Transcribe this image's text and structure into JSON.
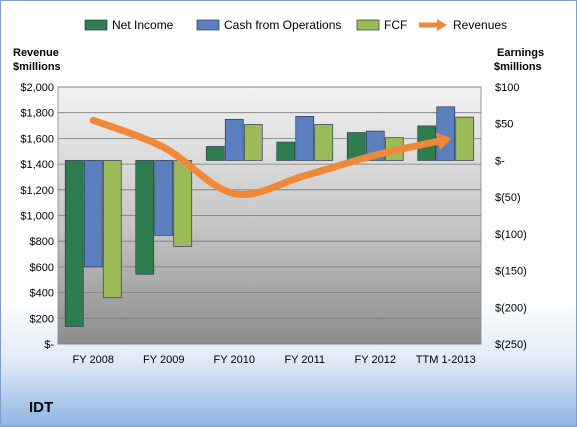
{
  "chart_data": {
    "type": "bar",
    "company": "IDT",
    "categories": [
      "FY 2008",
      "FY 2009",
      "FY 2010",
      "FY 2011",
      "FY 2012",
      "TTM 1-2013"
    ],
    "left_axis": {
      "title_line1": "Revenue",
      "title_line2": "$millions",
      "ylim": [
        0,
        2000
      ],
      "ticks": [
        0,
        200,
        400,
        600,
        800,
        1000,
        1200,
        1400,
        1600,
        1800,
        2000
      ],
      "tick_labels": [
        "$-",
        "$200",
        "$400",
        "$600",
        "$800",
        "$1,000",
        "$1,200",
        "$1,400",
        "$1,600",
        "$1,800",
        "$2,000"
      ]
    },
    "right_axis": {
      "title_line1": "Earnings",
      "title_line2": "$millions",
      "ylim": [
        -250,
        100
      ],
      "ticks": [
        -250,
        -200,
        -150,
        -100,
        -50,
        0,
        50,
        100
      ],
      "tick_labels": [
        "$(250)",
        "$(200)",
        "$(150)",
        "$(100)",
        "$(50)",
        "$-",
        "$50",
        "$100"
      ]
    },
    "series": [
      {
        "name": "Net Income",
        "axis": "right",
        "color": "#2e7d4f",
        "values": [
          -226,
          -155,
          19,
          25,
          38,
          47
        ]
      },
      {
        "name": "Cash from Operations",
        "axis": "right",
        "color": "#5b7fbf",
        "values": [
          -145,
          -102,
          56,
          60,
          40,
          73
        ]
      },
      {
        "name": "FCF",
        "axis": "right",
        "color": "#9bbb59",
        "values": [
          -187,
          -117,
          49,
          49,
          31,
          59
        ]
      }
    ],
    "line_series": {
      "name": "Revenues",
      "axis": "left",
      "color": "#f0883a",
      "values": [
        1740,
        1530,
        1170,
        1310,
        1470,
        1590
      ]
    },
    "grid": true,
    "legend_position": "top"
  }
}
